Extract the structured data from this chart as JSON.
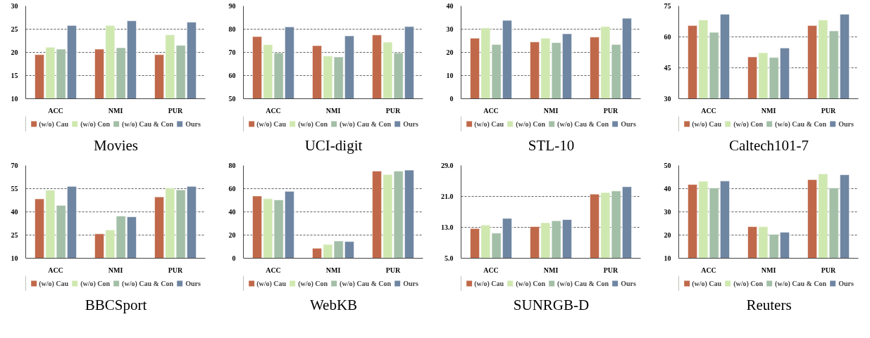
{
  "chart_data": [
    {
      "type": "bar",
      "title": "Movies",
      "categories": [
        "ACC",
        "NMI",
        "PUR"
      ],
      "ylim": [
        10,
        30
      ],
      "yticks": [
        10,
        15,
        20,
        25,
        30
      ],
      "grid": "y",
      "legend": "bottom",
      "series": [
        {
          "name": "(w/o) Cau",
          "color": "#c0694a",
          "values": [
            19.5,
            20.7,
            19.5
          ]
        },
        {
          "name": "(w/o) Con",
          "color": "#cfe8b0",
          "values": [
            21.1,
            25.8,
            23.8
          ]
        },
        {
          "name": "(w/o) Cau & Con",
          "color": "#a3bfa7",
          "values": [
            20.7,
            21.0,
            21.5
          ]
        },
        {
          "name": "Ours",
          "color": "#6f86a2",
          "values": [
            25.8,
            26.8,
            26.5
          ]
        }
      ]
    },
    {
      "type": "bar",
      "title": "UCI-digit",
      "categories": [
        "ACC",
        "NMI",
        "PUR"
      ],
      "ylim": [
        50,
        90
      ],
      "yticks": [
        50,
        60,
        70,
        80,
        90
      ],
      "grid": "y",
      "legend": "bottom",
      "series": [
        {
          "name": "(w/o) Cau",
          "color": "#c0694a",
          "values": [
            76.8,
            72.9,
            77.5
          ]
        },
        {
          "name": "(w/o) Con",
          "color": "#cfe8b0",
          "values": [
            73.3,
            68.4,
            74.4
          ]
        },
        {
          "name": "(w/o) Cau & Con",
          "color": "#a3bfa7",
          "values": [
            69.8,
            68.0,
            69.8
          ]
        },
        {
          "name": "Ours",
          "color": "#6f86a2",
          "values": [
            81.0,
            77.1,
            81.1
          ]
        }
      ]
    },
    {
      "type": "bar",
      "title": "STL-10",
      "categories": [
        "ACC",
        "NMI",
        "PUR"
      ],
      "ylim": [
        0,
        40
      ],
      "yticks": [
        0,
        10,
        20,
        30,
        40
      ],
      "grid": "y",
      "legend": "bottom",
      "series": [
        {
          "name": "(w/o) Cau",
          "color": "#c0694a",
          "values": [
            26.1,
            24.5,
            26.6
          ]
        },
        {
          "name": "(w/o) Con",
          "color": "#cfe8b0",
          "values": [
            30.5,
            26.1,
            31.1
          ]
        },
        {
          "name": "(w/o) Cau & Con",
          "color": "#a3bfa7",
          "values": [
            23.4,
            24.2,
            23.4
          ]
        },
        {
          "name": "Ours",
          "color": "#6f86a2",
          "values": [
            33.8,
            28.0,
            34.7
          ]
        }
      ]
    },
    {
      "type": "bar",
      "title": "Caltech101-7",
      "categories": [
        "ACC",
        "NMI",
        "PUR"
      ],
      "ylim": [
        30,
        75
      ],
      "yticks": [
        30,
        45,
        60,
        75
      ],
      "grid": "y",
      "legend": "bottom",
      "series": [
        {
          "name": "(w/o) Cau",
          "color": "#c0694a",
          "values": [
            65.5,
            50.3,
            65.5
          ]
        },
        {
          "name": "(w/o) Con",
          "color": "#cfe8b0",
          "values": [
            68.2,
            52.3,
            68.2
          ]
        },
        {
          "name": "(w/o) Cau & Con",
          "color": "#a3bfa7",
          "values": [
            62.2,
            50.0,
            62.9
          ]
        },
        {
          "name": "Ours",
          "color": "#6f86a2",
          "values": [
            71.0,
            54.6,
            71.0
          ]
        }
      ]
    },
    {
      "type": "bar",
      "title": "BBCSport",
      "categories": [
        "ACC",
        "NMI",
        "PUR"
      ],
      "ylim": [
        10,
        70
      ],
      "yticks": [
        10,
        25,
        40,
        55,
        70
      ],
      "grid": "y",
      "legend": "bottom",
      "series": [
        {
          "name": "(w/o) Cau",
          "color": "#c0694a",
          "values": [
            48.4,
            25.8,
            49.7
          ]
        },
        {
          "name": "(w/o) Con",
          "color": "#cfe8b0",
          "values": [
            54.0,
            28.3,
            55.4
          ]
        },
        {
          "name": "(w/o) Cau & Con",
          "color": "#a3bfa7",
          "values": [
            44.2,
            37.3,
            54.2
          ]
        },
        {
          "name": "Ours",
          "color": "#6f86a2",
          "values": [
            56.5,
            36.8,
            56.5
          ]
        }
      ]
    },
    {
      "type": "bar",
      "title": "WebKB",
      "categories": [
        "ACC",
        "NMI",
        "PUR"
      ],
      "ylim": [
        0,
        80
      ],
      "yticks": [
        0,
        20,
        40,
        60,
        80
      ],
      "grid": "y",
      "legend": "bottom",
      "series": [
        {
          "name": "(w/o) Cau",
          "color": "#c0694a",
          "values": [
            53.7,
            8.6,
            75.2
          ]
        },
        {
          "name": "(w/o) Con",
          "color": "#cfe8b0",
          "values": [
            51.3,
            11.9,
            72.2
          ]
        },
        {
          "name": "(w/o) Cau & Con",
          "color": "#a3bfa7",
          "values": [
            50.3,
            14.9,
            75.2
          ]
        },
        {
          "name": "Ours",
          "color": "#6f86a2",
          "values": [
            57.7,
            14.4,
            76.0
          ]
        }
      ]
    },
    {
      "type": "bar",
      "title": "SUNRGB-D",
      "categories": [
        "ACC",
        "NMI",
        "PUR"
      ],
      "ylim": [
        5,
        29
      ],
      "yticks": [
        {
          "value": 5,
          "label": "5.0"
        },
        {
          "value": 13,
          "label": "13.0"
        },
        {
          "value": 21,
          "label": "21.0"
        },
        {
          "value": 29,
          "label": "29.0"
        }
      ],
      "grid": "y",
      "legend": "bottom",
      "series": [
        {
          "name": "(w/o) Cau",
          "color": "#c0694a",
          "values": [
            12.7,
            13.2,
            21.6
          ]
        },
        {
          "name": "(w/o) Con",
          "color": "#cfe8b0",
          "values": [
            13.6,
            14.2,
            22.0
          ]
        },
        {
          "name": "(w/o) Cau & Con",
          "color": "#a3bfa7",
          "values": [
            11.5,
            14.7,
            22.4
          ]
        },
        {
          "name": "Ours",
          "color": "#6f86a2",
          "values": [
            15.3,
            15.0,
            23.5
          ]
        }
      ]
    },
    {
      "type": "bar",
      "title": "Reuters",
      "categories": [
        "ACC",
        "NMI",
        "PUR"
      ],
      "ylim": [
        10,
        50
      ],
      "yticks": [
        10,
        20,
        30,
        40,
        50
      ],
      "grid": "y",
      "legend": "bottom",
      "series": [
        {
          "name": "(w/o) Cau",
          "color": "#c0694a",
          "values": [
            41.8,
            23.6,
            43.9
          ]
        },
        {
          "name": "(w/o) Con",
          "color": "#cfe8b0",
          "values": [
            43.2,
            23.6,
            46.4
          ]
        },
        {
          "name": "(w/o) Cau & Con",
          "color": "#a3bfa7",
          "values": [
            40.3,
            20.3,
            40.3
          ]
        },
        {
          "name": "Ours",
          "color": "#6f86a2",
          "values": [
            43.3,
            21.2,
            46.0
          ]
        }
      ]
    }
  ]
}
